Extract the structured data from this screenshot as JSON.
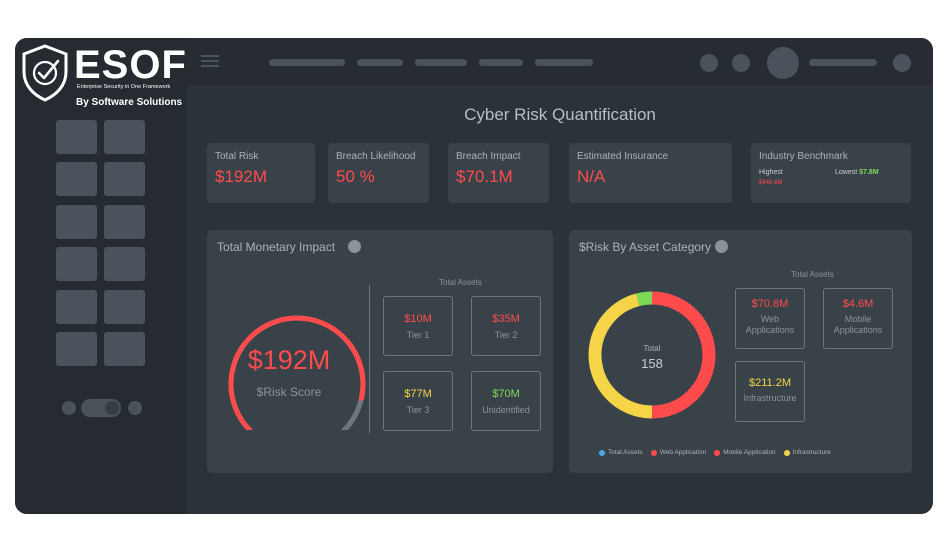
{
  "logo": {
    "name": "ESOF",
    "tagline": "Enterprise Security in One Framework",
    "by": "By Software Solutions"
  },
  "page_title": "Cyber Risk Quantification",
  "kpis": [
    {
      "label": "Total Risk",
      "value": "$192M"
    },
    {
      "label": "Breach Likelihood",
      "value": "50 %"
    },
    {
      "label": "Breach Impact",
      "value": "$70.1M"
    },
    {
      "label": "Estimated Insurance",
      "value": "N/A"
    }
  ],
  "benchmark": {
    "label": "Industry Benchmark",
    "highest_label": "Highest",
    "highest_value": "$446.6M",
    "lowest_label": "Lowest",
    "lowest_value": "$7.8M"
  },
  "monetary": {
    "title": "Total Monetary Impact",
    "gauge_value": "$192M",
    "gauge_label": "$Risk Score",
    "gauge_fill": 0.88,
    "assets_label": "Total Assets",
    "tiers": [
      {
        "value": "$10M",
        "name": "Tier 1",
        "color": "#ff4b4b"
      },
      {
        "value": "$35M",
        "name": "Tier 2",
        "color": "#ff4b4b"
      },
      {
        "value": "$77M",
        "name": "Tier 3",
        "color": "#f5d547"
      },
      {
        "value": "$70M",
        "name": "Unidentified",
        "color": "#7ed957"
      }
    ]
  },
  "asset_category": {
    "title": "$Risk By Asset Category",
    "assets_label": "Total Assets",
    "total_label": "Total",
    "total_value": "158",
    "cards": [
      {
        "value": "$70.8M",
        "name": "Web Applications",
        "color": "#ff4b4b"
      },
      {
        "value": "$4.6M",
        "name": "Mobile Applications",
        "color": "#ff4b4b"
      },
      {
        "value": "$211.2M",
        "name": "Infrastructure",
        "color": "#f5d547"
      }
    ],
    "legend": [
      {
        "label": "Total Assets",
        "color": "#4aa8e8"
      },
      {
        "label": "Web Application",
        "color": "#ff4b4b"
      },
      {
        "label": "Mobile Application",
        "color": "#ff4b4b"
      },
      {
        "label": "Infrastructure",
        "color": "#f5d547"
      }
    ],
    "donut_segments": [
      {
        "name": "Web Application",
        "fraction": 0.5,
        "color": "#ff4b4b"
      },
      {
        "name": "Infrastructure",
        "fraction": 0.46,
        "color": "#f5d547"
      },
      {
        "name": "Mobile Application",
        "fraction": 0.04,
        "color": "#7ed957"
      }
    ]
  }
}
